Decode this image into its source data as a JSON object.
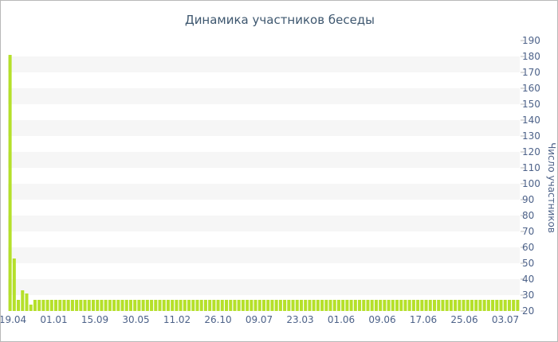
{
  "chart_data": {
    "type": "bar",
    "title": "Динамика участников беседы",
    "xlabel": "",
    "ylabel": "Число участников",
    "ylim": [
      20,
      190
    ],
    "y_ticks": [
      20,
      30,
      40,
      50,
      60,
      70,
      80,
      90,
      100,
      110,
      120,
      130,
      140,
      150,
      160,
      170,
      180,
      190
    ],
    "x_tick_labels": [
      "19.04",
      "01.01",
      "15.09",
      "30.05",
      "11.02",
      "26.10",
      "09.07",
      "23.03",
      "01.06",
      "09.06",
      "17.06",
      "25.06",
      "03.07"
    ],
    "grid": true,
    "legend": "none",
    "bar_color": "#b5e02a",
    "values": [
      181,
      53,
      27,
      33,
      31,
      24,
      27,
      27,
      27,
      27,
      27,
      27,
      27,
      27,
      27,
      27,
      27,
      27,
      27,
      27,
      27,
      27,
      27,
      27,
      27,
      27,
      27,
      27,
      27,
      27,
      27,
      27,
      27,
      27,
      27,
      27,
      27,
      27,
      27,
      27,
      27,
      27,
      27,
      27,
      27,
      27,
      27,
      27,
      27,
      27,
      27,
      27,
      27,
      27,
      27,
      27,
      27,
      27,
      27,
      27,
      27,
      27,
      27,
      27,
      27,
      27,
      27,
      27,
      27,
      27,
      27,
      27,
      27,
      27,
      27,
      27,
      27,
      27,
      27,
      27,
      27,
      27,
      27,
      27,
      27,
      27,
      27,
      27,
      27,
      27,
      27,
      27,
      27,
      27,
      27,
      27,
      27,
      27,
      27,
      27,
      27,
      27,
      27,
      27,
      27,
      27,
      27,
      27,
      27,
      27,
      27,
      27,
      27,
      27,
      27,
      27,
      27,
      27,
      27,
      27,
      27,
      27,
      27
    ]
  }
}
